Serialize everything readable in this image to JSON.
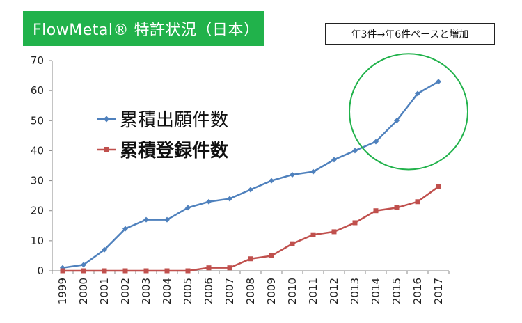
{
  "header": {
    "title": "FlowMetal® 特許状況（日本）",
    "note": "年3件→年6件ペースと増加"
  },
  "chart_data": {
    "type": "line",
    "x": [
      "1999",
      "2000",
      "2001",
      "2002",
      "2003",
      "2004",
      "2005",
      "2006",
      "2007",
      "2008",
      "2009",
      "2010",
      "2011",
      "2012",
      "2013",
      "2014",
      "2015",
      "2016",
      "2017"
    ],
    "series": [
      {
        "name": "累積出願件数",
        "color": "#4f81bd",
        "marker": "diamond",
        "values": [
          1,
          2,
          7,
          14,
          17,
          17,
          21,
          23,
          24,
          27,
          30,
          32,
          33,
          37,
          40,
          43,
          50,
          59,
          63
        ]
      },
      {
        "name": "累積登録件数",
        "color": "#c0504d",
        "marker": "square",
        "values": [
          0,
          0,
          0,
          0,
          0,
          0,
          0,
          1,
          1,
          4,
          5,
          9,
          12,
          13,
          16,
          20,
          21,
          23,
          28
        ]
      }
    ],
    "ylim": [
      0,
      70
    ],
    "yticks": [
      0,
      10,
      20,
      30,
      40,
      50,
      60,
      70
    ],
    "grid": false,
    "legend": "upper-left",
    "annotation": {
      "shape": "circle",
      "color": "#21b24b",
      "highlight_years": [
        "2014",
        "2015",
        "2016",
        "2017"
      ]
    }
  }
}
